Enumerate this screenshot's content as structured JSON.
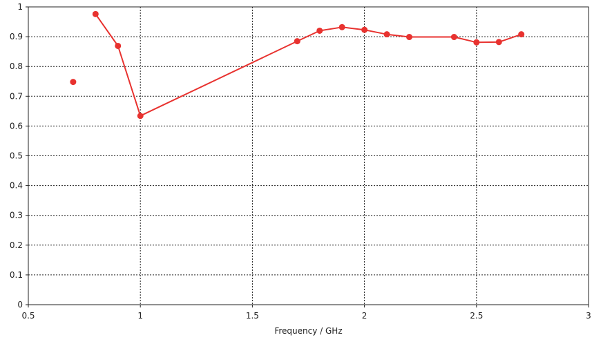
{
  "chart_data": {
    "type": "line",
    "title": "",
    "xlabel": "Frequency / GHz",
    "ylabel": "",
    "xlim": [
      0.5,
      3
    ],
    "ylim": [
      0,
      1
    ],
    "xticks": [
      0.5,
      1,
      1.5,
      2,
      2.5,
      3
    ],
    "xtick_labels": [
      "0.5",
      "1",
      "1.5",
      "2",
      "2.5",
      "3"
    ],
    "yticks": [
      0,
      0.1,
      0.2,
      0.3,
      0.4,
      0.5,
      0.6,
      0.7,
      0.8,
      0.9,
      1
    ],
    "ytick_labels": [
      "0",
      "0.1",
      "0.2",
      "0.3",
      "0.4",
      "0.5",
      "0.6",
      "0.7",
      "0.8",
      "0.9",
      "1"
    ],
    "grid": true,
    "legend": "none",
    "series": [
      {
        "color": "#e8322f",
        "x": [
          0.7,
          0.8,
          0.9,
          1.0,
          1.7,
          1.8,
          1.9,
          2.0,
          2.1,
          2.2,
          2.4,
          2.5,
          2.6,
          2.7
        ],
        "y": [
          0.748,
          0.976,
          0.869,
          0.634,
          0.885,
          0.92,
          0.932,
          0.923,
          0.908,
          0.899,
          0.899,
          0.881,
          0.882,
          0.908
        ],
        "connect_from_index": 1
      }
    ]
  }
}
